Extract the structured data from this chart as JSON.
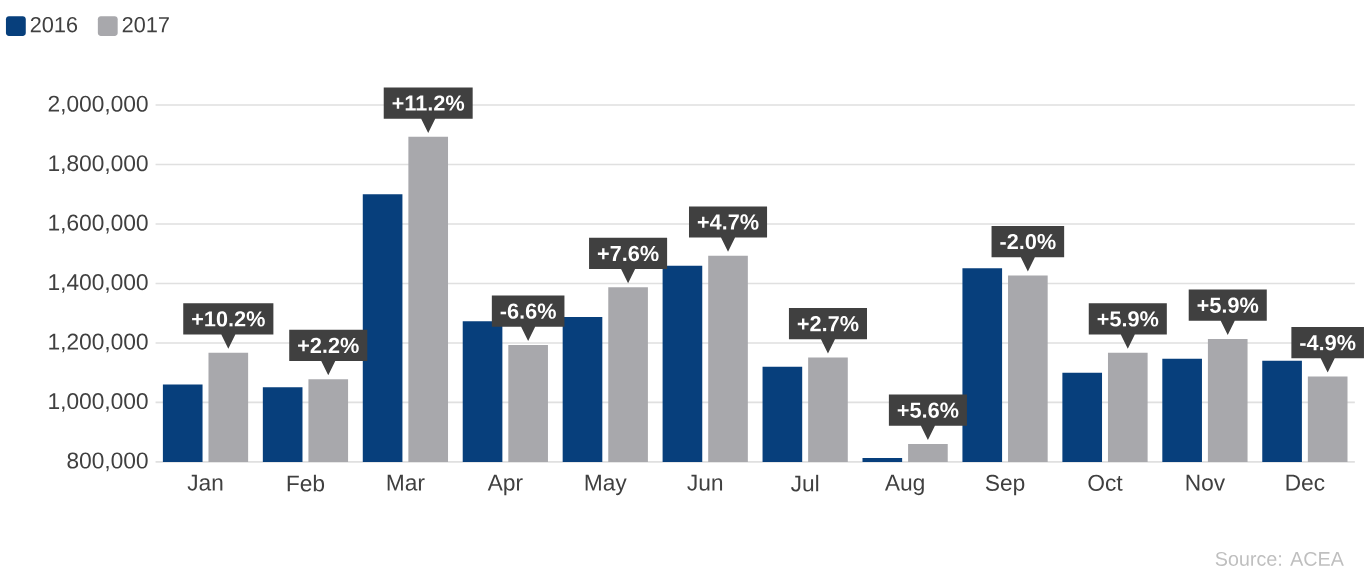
{
  "chart_data": {
    "type": "bar",
    "categories": [
      "Jan",
      "Feb",
      "Mar",
      "Apr",
      "May",
      "Jun",
      "Jul",
      "Aug",
      "Sep",
      "Oct",
      "Nov",
      "Dec"
    ],
    "series": [
      {
        "name": "2016",
        "color": "#073f7c",
        "values": [
          1060000,
          1051000,
          1700000,
          1273000,
          1287000,
          1460000,
          1120000,
          813000,
          1451000,
          1100000,
          1147000,
          1140000
        ]
      },
      {
        "name": "2017",
        "color": "#a8a8ac",
        "values": [
          1167000,
          1078000,
          1893000,
          1193000,
          1387000,
          1493000,
          1151000,
          860000,
          1427000,
          1167000,
          1213000,
          1087000
        ]
      }
    ],
    "ylim": [
      800000,
      2000000
    ],
    "yticks": [
      {
        "value": 800000,
        "label": "800,000"
      },
      {
        "value": 1000000,
        "label": "1,000,000"
      },
      {
        "value": 1200000,
        "label": "1,200,000"
      },
      {
        "value": 1400000,
        "label": "1,400,000"
      },
      {
        "value": 1600000,
        "label": "1,600,000"
      },
      {
        "value": 1800000,
        "label": "1,800,000"
      },
      {
        "value": 2000000,
        "label": "2,000,000"
      }
    ],
    "grid": "y",
    "legend": "top left",
    "annotations": [
      {
        "text": "+10.2%",
        "x": "Jan",
        "y": 1167000
      },
      {
        "text": "+2.2%",
        "x": "Feb",
        "y": 1078000
      },
      {
        "text": "+11.2%",
        "x": "Mar",
        "y": 1893000
      },
      {
        "text": "-6.6%",
        "x": "Apr",
        "y": 1193000
      },
      {
        "text": "+7.6%",
        "x": "May",
        "y": 1387000
      },
      {
        "text": "+4.7%",
        "x": "Jun",
        "y": 1493000
      },
      {
        "text": "+2.7%",
        "x": "Jul",
        "y": 1151000
      },
      {
        "text": "+5.6%",
        "x": "Aug",
        "y": 860000
      },
      {
        "text": "-2.0%",
        "x": "Sep",
        "y": 1427000
      },
      {
        "text": "+5.9%",
        "x": "Oct",
        "y": 1167000
      },
      {
        "text": "+5.9%",
        "x": "Nov",
        "y": 1213000
      },
      {
        "text": "-4.9%",
        "x": "Dec",
        "y": 1087000
      },
      "Source: ACEA"
    ]
  }
}
